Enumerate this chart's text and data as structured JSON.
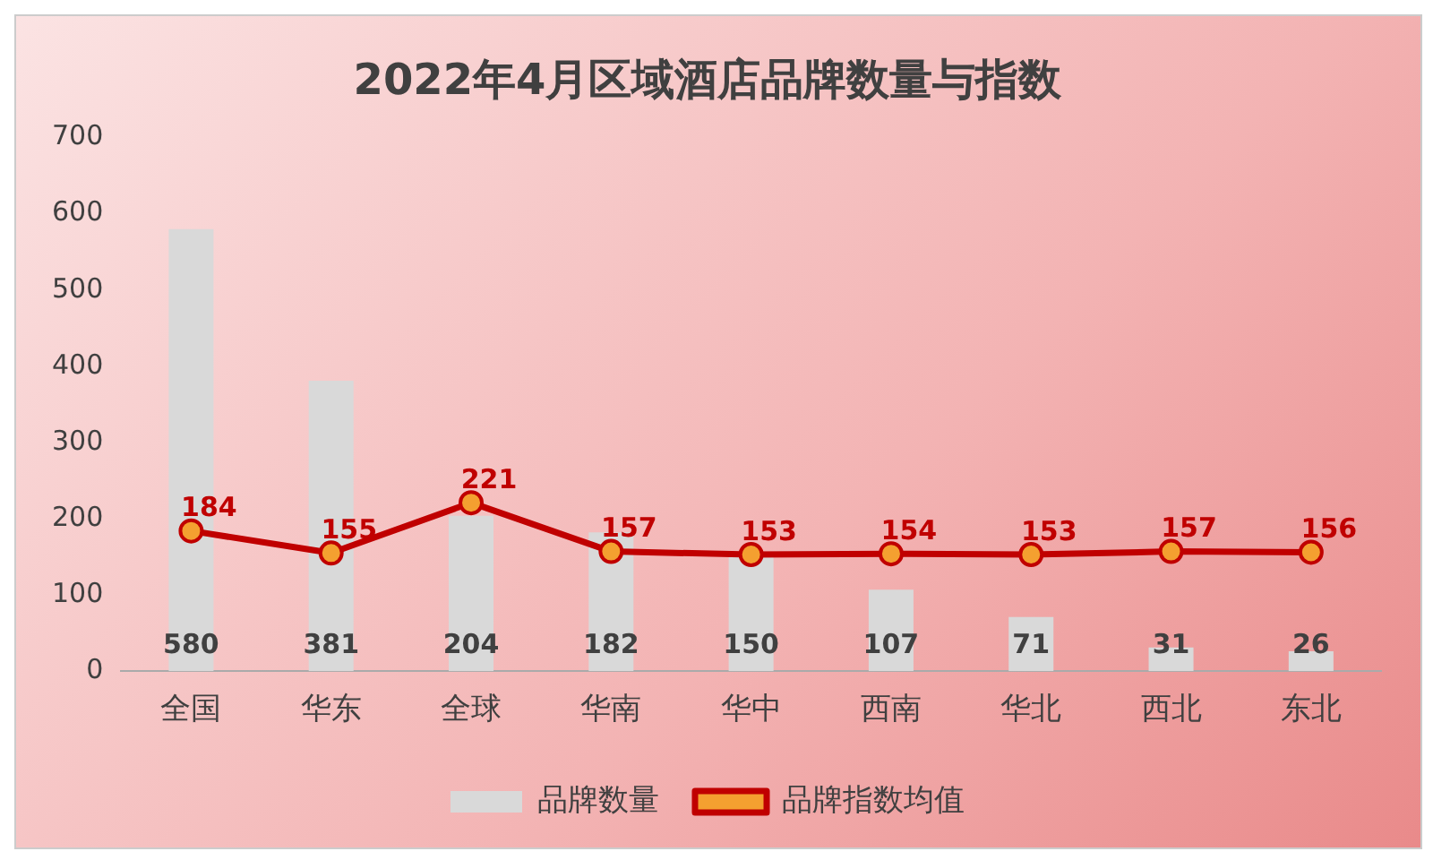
{
  "chart_data": {
    "type": "bar",
    "title": "2022年4月区域酒店品牌数量与指数",
    "categories": [
      "全国",
      "华东",
      "全球",
      "华南",
      "华中",
      "西南",
      "华北",
      "西北",
      "东北"
    ],
    "series": [
      {
        "name": "品牌数量",
        "color": "#d9d9d9",
        "values": [
          580,
          381,
          204,
          182,
          150,
          107,
          71,
          31,
          26
        ]
      },
      {
        "name": "品牌指数均值",
        "type": "line",
        "color": "#c00000",
        "values": [
          184,
          155,
          221,
          157,
          153,
          154,
          153,
          157,
          156
        ]
      }
    ],
    "ylim": [
      0,
      700
    ],
    "yticks": [
      0,
      100,
      200,
      300,
      400,
      500,
      600,
      700
    ],
    "grid": false,
    "legend": "bottom",
    "marker": "circle",
    "line_style": "solid",
    "data_labels": true
  }
}
